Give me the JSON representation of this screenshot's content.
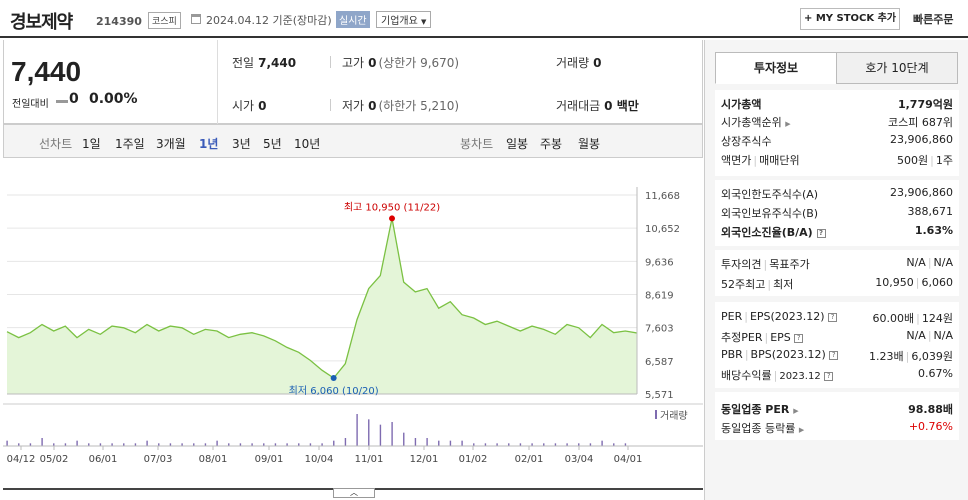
{
  "header": {
    "name": "경보제약",
    "code": "214390",
    "market": "코스피",
    "date": "2024.04.12 기준(장마감)",
    "realtime": "실시간",
    "overview": "기업개요",
    "mystock": "+ MY STOCK 추가",
    "quick_order": "빠른주문"
  },
  "quote": {
    "price": "7,440",
    "change_label": "전일대비",
    "change": "0",
    "change_pct": "0.00%",
    "prev_label": "전일",
    "prev": "7,440",
    "high_label": "고가",
    "high": "0",
    "upper_limit": "(상한가 9,670)",
    "volume_label": "거래량",
    "volume": "0",
    "open_label": "시가",
    "open": "0",
    "low_label": "저가",
    "low": "0",
    "lower_limit": "(하한가 5,210)",
    "amount_label": "거래대금",
    "amount": "0 백만"
  },
  "chart_tabs": {
    "line_label": "선차트",
    "periods": [
      "1일",
      "1주일",
      "3개월",
      "1년",
      "3년",
      "5년",
      "10년"
    ],
    "active": "1년",
    "candle_label": "봉차트",
    "candles": [
      "일봉",
      "주봉",
      "월봉"
    ]
  },
  "chart_data": {
    "type": "area",
    "y_ticks": [
      "11,668",
      "10,652",
      "9,636",
      "8,619",
      "7,603",
      "6,587",
      "5,571"
    ],
    "ylim": [
      5571,
      11668
    ],
    "x_tick_labels": [
      "04/12",
      "05/02",
      "06/01",
      "07/03",
      "08/01",
      "09/01",
      "10/04",
      "11/01",
      "12/01",
      "01/02",
      "02/01",
      "03/04",
      "04/01"
    ],
    "high_annotation": "최고 10,950 (11/22)",
    "low_annotation": "최저 6,060 (10/20)",
    "volume_legend": "거래량",
    "x": [
      "04/12",
      "04/19",
      "04/26",
      "05/03",
      "05/10",
      "05/17",
      "05/24",
      "05/31",
      "06/07",
      "06/14",
      "06/21",
      "06/28",
      "07/05",
      "07/12",
      "07/19",
      "07/26",
      "08/02",
      "08/09",
      "08/16",
      "08/23",
      "08/30",
      "09/06",
      "09/13",
      "09/20",
      "09/27",
      "10/04",
      "10/11",
      "10/18",
      "10/20",
      "10/27",
      "11/01",
      "11/08",
      "11/15",
      "11/22",
      "11/29",
      "12/06",
      "12/13",
      "12/20",
      "12/27",
      "01/03",
      "01/10",
      "01/17",
      "01/24",
      "01/31",
      "02/07",
      "02/14",
      "02/21",
      "02/28",
      "03/06",
      "03/13",
      "03/20",
      "03/27",
      "04/03",
      "04/10",
      "04/12"
    ],
    "series": [
      {
        "values": [
          7480,
          7300,
          7450,
          7700,
          7500,
          7650,
          7300,
          7550,
          7400,
          7650,
          7600,
          7450,
          7700,
          7500,
          7650,
          7600,
          7400,
          7550,
          7500,
          7300,
          7400,
          7450,
          7350,
          7200,
          7000,
          6850,
          6600,
          6300,
          6060,
          6500,
          7850,
          8800,
          9200,
          10950,
          9000,
          8700,
          8800,
          8200,
          8400,
          8000,
          7900,
          7700,
          7800,
          7650,
          7500,
          7650,
          7550,
          7400,
          7700,
          7600,
          7300,
          7700,
          7450,
          7500,
          7440
        ]
      }
    ],
    "volume": [
      2,
      1,
      1,
      3,
      1,
      1,
      2,
      1,
      1,
      1,
      1,
      1,
      2,
      1,
      1,
      1,
      1,
      1,
      2,
      1,
      1,
      1,
      1,
      1,
      1,
      1,
      1,
      1,
      2,
      3,
      12,
      10,
      8,
      9,
      5,
      3,
      3,
      2,
      2,
      2,
      1,
      1,
      1,
      1,
      1,
      1,
      1,
      1,
      1,
      1,
      1,
      2,
      1,
      1,
      0
    ]
  },
  "invest": {
    "tab_info": "투자정보",
    "tab_order": "호가 10단계",
    "market_cap_label": "시가총액",
    "market_cap": "1,779억원",
    "rank_label": "시가총액순위",
    "rank": "코스피 687위",
    "shares_label": "상장주식수",
    "shares": "23,906,860",
    "par_label": "액면가",
    "unit_label": "매매단위",
    "par": "500원",
    "unit": "1주",
    "foreign_limit_label": "외국인한도주식수(A)",
    "foreign_limit": "23,906,860",
    "foreign_hold_label": "외국인보유주식수(B)",
    "foreign_hold": "388,671",
    "foreign_ratio_label": "외국인소진율(B/A)",
    "foreign_ratio": "1.63%",
    "opinion_label": "투자의견",
    "target_label": "목표주가",
    "opinion": "N/A",
    "target": "N/A",
    "w52_high_label": "52주최고",
    "w52_low_label": "최저",
    "w52_high": "10,950",
    "w52_low": "6,060",
    "per_label": "PER",
    "eps_label": "EPS(2023.12)",
    "per": "60.00배",
    "eps": "124원",
    "est_per_label": "추정PER",
    "est_eps_label": "EPS",
    "est_per": "N/A",
    "est_eps": "N/A",
    "pbr_label": "PBR",
    "bps_label": "BPS(2023.12)",
    "pbr": "1.23배",
    "bps": "6,039원",
    "div_label": "배당수익률",
    "div_date": "2023.12",
    "div": "0.67%",
    "ind_per_label": "동일업종 PER",
    "ind_per": "98.88배",
    "ind_rate_label": "동일업종 등락률",
    "ind_rate": "+0.76%"
  }
}
